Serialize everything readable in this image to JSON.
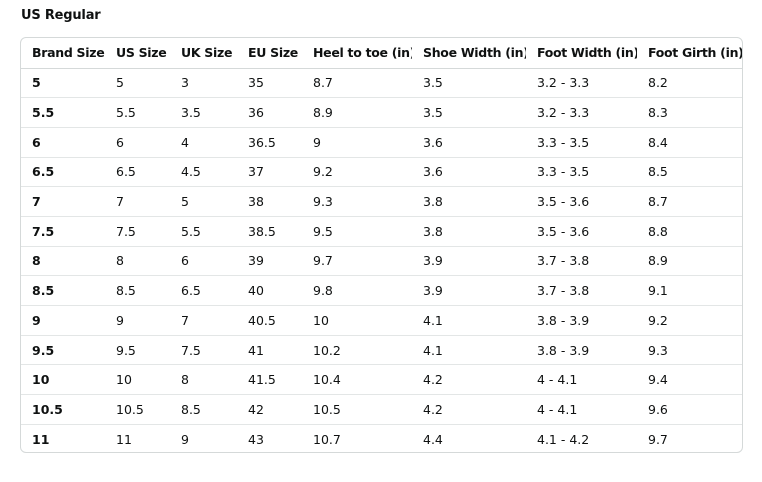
{
  "section_title": "US Regular",
  "table": {
    "headers": [
      "Brand Size",
      "US Size",
      "UK Size",
      "EU Size",
      "Heel to toe (in)",
      "Shoe Width (in)",
      "Foot Width (in)",
      "Foot Girth (in)"
    ],
    "rows": [
      [
        "5",
        "5",
        "3",
        "35",
        "8.7",
        "3.5",
        "3.2 - 3.3",
        "8.2"
      ],
      [
        "5.5",
        "5.5",
        "3.5",
        "36",
        "8.9",
        "3.5",
        "3.2 - 3.3",
        "8.3"
      ],
      [
        "6",
        "6",
        "4",
        "36.5",
        "9",
        "3.6",
        "3.3 - 3.5",
        "8.4"
      ],
      [
        "6.5",
        "6.5",
        "4.5",
        "37",
        "9.2",
        "3.6",
        "3.3 - 3.5",
        "8.5"
      ],
      [
        "7",
        "7",
        "5",
        "38",
        "9.3",
        "3.8",
        "3.5 - 3.6",
        "8.7"
      ],
      [
        "7.5",
        "7.5",
        "5.5",
        "38.5",
        "9.5",
        "3.8",
        "3.5 - 3.6",
        "8.8"
      ],
      [
        "8",
        "8",
        "6",
        "39",
        "9.7",
        "3.9",
        "3.7 - 3.8",
        "8.9"
      ],
      [
        "8.5",
        "8.5",
        "6.5",
        "40",
        "9.8",
        "3.9",
        "3.7 - 3.8",
        "9.1"
      ],
      [
        "9",
        "9",
        "7",
        "40.5",
        "10",
        "4.1",
        "3.8 - 3.9",
        "9.2"
      ],
      [
        "9.5",
        "9.5",
        "7.5",
        "41",
        "10.2",
        "4.1",
        "3.8 - 3.9",
        "9.3"
      ],
      [
        "10",
        "10",
        "8",
        "41.5",
        "10.4",
        "4.2",
        "4 - 4.1",
        "9.4"
      ],
      [
        "10.5",
        "10.5",
        "8.5",
        "42",
        "10.5",
        "4.2",
        "4 - 4.1",
        "9.6"
      ],
      [
        "11",
        "11",
        "9",
        "43",
        "10.7",
        "4.4",
        "4.1 - 4.2",
        "9.7"
      ]
    ]
  }
}
